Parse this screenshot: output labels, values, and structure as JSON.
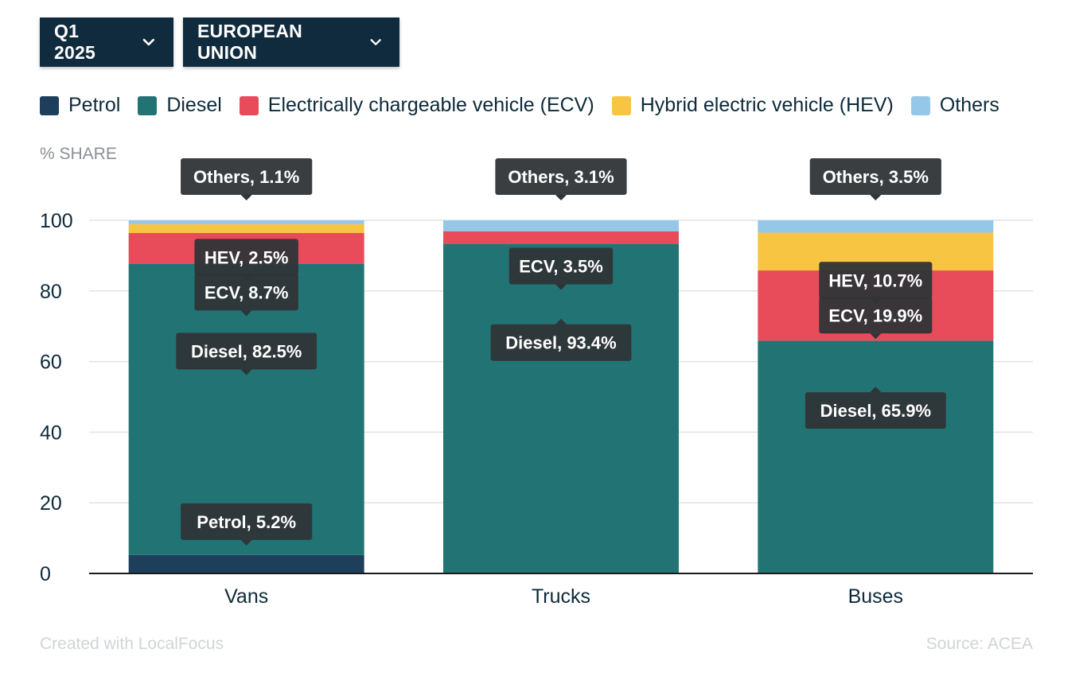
{
  "filters": {
    "period": "Q1 2025",
    "region": "EUROPEAN UNION"
  },
  "legend": [
    {
      "name": "Petrol",
      "color": "#1d3f5c"
    },
    {
      "name": "Diesel",
      "color": "#227474"
    },
    {
      "name": "Electrically chargeable vehicle (ECV)",
      "color": "#e84b5a"
    },
    {
      "name": "Hybrid electric vehicle (HEV)",
      "color": "#f8c542"
    },
    {
      "name": "Others",
      "color": "#95c7e8"
    }
  ],
  "chart_data": {
    "type": "bar",
    "stacked": true,
    "ylabel": "% SHARE",
    "ylim": [
      0,
      100
    ],
    "yticks": [
      0,
      20,
      40,
      60,
      80,
      100
    ],
    "grid": true,
    "legend_position": "top",
    "categories": [
      "Vans",
      "Trucks",
      "Buses"
    ],
    "series": [
      {
        "name": "Petrol",
        "short": "Petrol",
        "color": "#1d3f5c",
        "values": [
          5.2,
          0,
          0
        ]
      },
      {
        "name": "Diesel",
        "short": "Diesel",
        "color": "#227474",
        "values": [
          82.5,
          93.4,
          65.9
        ]
      },
      {
        "name": "Electrically chargeable vehicle (ECV)",
        "short": "ECV",
        "color": "#e84b5a",
        "values": [
          8.7,
          3.5,
          19.9
        ]
      },
      {
        "name": "Hybrid electric vehicle (HEV)",
        "short": "HEV",
        "color": "#f8c542",
        "values": [
          2.5,
          0,
          10.7
        ]
      },
      {
        "name": "Others",
        "short": "Others",
        "color": "#95c7e8",
        "values": [
          1.1,
          3.1,
          3.5
        ]
      }
    ],
    "annotations": [
      {
        "category": "Vans",
        "text": "Petrol, 5.2%"
      },
      {
        "category": "Vans",
        "text": "Diesel, 82.5%"
      },
      {
        "category": "Vans",
        "text": "ECV, 8.7%"
      },
      {
        "category": "Vans",
        "text": "HEV, 2.5%"
      },
      {
        "category": "Vans",
        "text": "Others, 1.1%"
      },
      {
        "category": "Trucks",
        "text": "Diesel, 93.4%"
      },
      {
        "category": "Trucks",
        "text": "ECV, 3.5%"
      },
      {
        "category": "Trucks",
        "text": "Others, 3.1%"
      },
      {
        "category": "Buses",
        "text": "Diesel, 65.9%"
      },
      {
        "category": "Buses",
        "text": "ECV, 19.9%"
      },
      {
        "category": "Buses",
        "text": "HEV, 10.7%"
      },
      {
        "category": "Buses",
        "text": "Others, 3.5%"
      }
    ]
  },
  "footer": {
    "credit": "Created with LocalFocus",
    "source": "Source: ACEA"
  }
}
